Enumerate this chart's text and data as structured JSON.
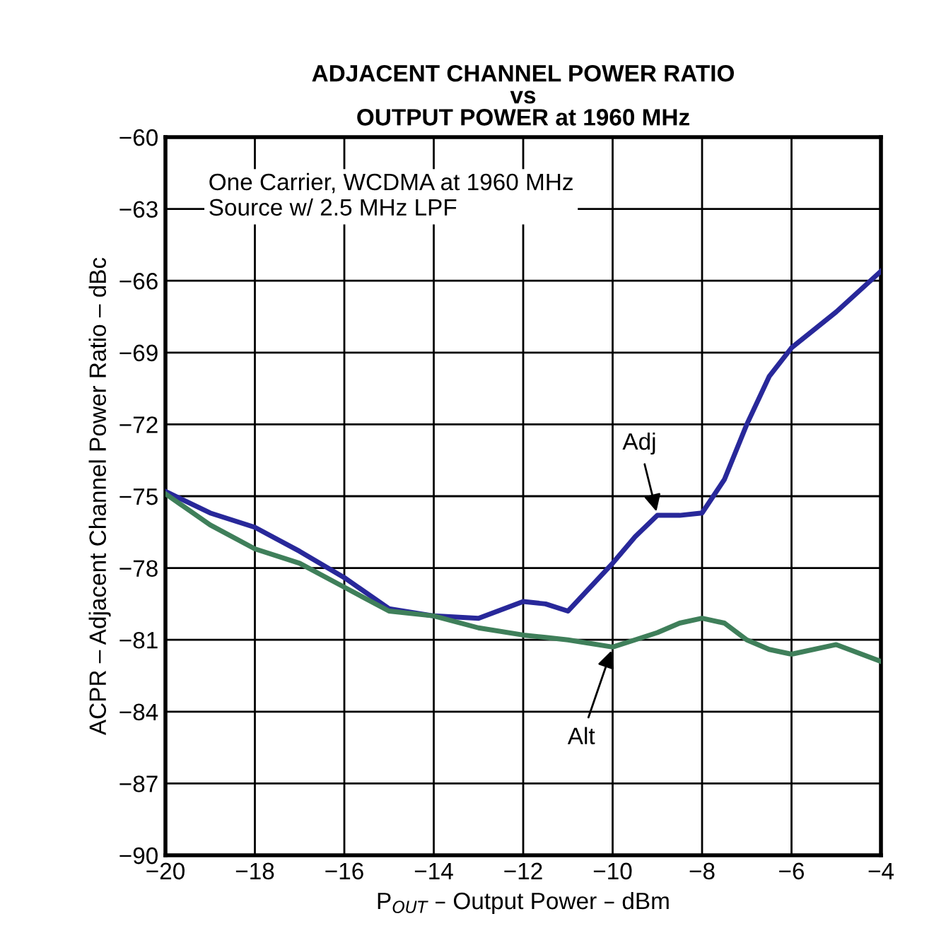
{
  "chart_data": {
    "type": "line",
    "title": "ADJACENT CHANNEL POWER RATIO\nvs\nOUTPUT POWER at 1960 MHz",
    "xlabel": "P$_{OUT}$ – Output Power – dBm",
    "ylabel": "ACPR – Adjacent Channel Power Ratio – dBc",
    "x": [
      -20,
      -19,
      -18,
      -17,
      -16,
      -15,
      -14,
      -13,
      -12,
      -11.5,
      -11,
      -10,
      -9.5,
      -9,
      -8.5,
      -8,
      -7.5,
      -7,
      -6.5,
      -6,
      -5,
      -4
    ],
    "series": [
      {
        "name": "Adj",
        "color": "#28289a",
        "values": [
          -74.8,
          -75.7,
          -76.3,
          -77.3,
          -78.4,
          -79.7,
          -80.0,
          -80.1,
          -79.4,
          -79.5,
          -79.8,
          -77.8,
          -76.7,
          -75.8,
          -75.8,
          -75.7,
          -74.3,
          -72.0,
          -70.0,
          -68.8,
          -67.3,
          -65.6
        ]
      },
      {
        "name": "Alt",
        "color": "#3f7f5a",
        "values": [
          -74.9,
          -76.2,
          -77.2,
          -77.8,
          -78.8,
          -79.8,
          -80.0,
          -80.5,
          -80.8,
          -80.9,
          -81.0,
          -81.3,
          -81.0,
          -80.7,
          -80.3,
          -80.1,
          -80.3,
          -81.0,
          -81.4,
          -81.6,
          -81.2,
          -81.9
        ]
      }
    ],
    "annotations": [
      "One Carrier, WCDMA at 1960 MHz\nSource w/ 2.5 MHz LPF"
    ],
    "xlim": [
      -20,
      -4
    ],
    "ylim": [
      -90,
      -60
    ],
    "xticks": [
      {
        "value": -20,
        "label": "−20"
      },
      {
        "value": -18,
        "label": "−18"
      },
      {
        "value": -16,
        "label": "−16"
      },
      {
        "value": -14,
        "label": "−14"
      },
      {
        "value": -12,
        "label": "−12"
      },
      {
        "value": -10,
        "label": "−10"
      },
      {
        "value": -8,
        "label": "−8"
      },
      {
        "value": -6,
        "label": "−6"
      },
      {
        "value": -4,
        "label": "−4"
      }
    ],
    "yticks": [
      {
        "value": -90,
        "label": "−90"
      },
      {
        "value": -87,
        "label": "−87"
      },
      {
        "value": -84,
        "label": "−84"
      },
      {
        "value": -81,
        "label": "−81"
      },
      {
        "value": -78,
        "label": "−78"
      },
      {
        "value": -75,
        "label": "−75"
      },
      {
        "value": -72,
        "label": "−72"
      },
      {
        "value": -69,
        "label": "−69"
      },
      {
        "value": -66,
        "label": "−66"
      },
      {
        "value": -63,
        "label": "−63"
      },
      {
        "value": -60,
        "label": "−60"
      }
    ],
    "grid": true,
    "legend": false,
    "line_style": "solid",
    "marker": "none"
  }
}
